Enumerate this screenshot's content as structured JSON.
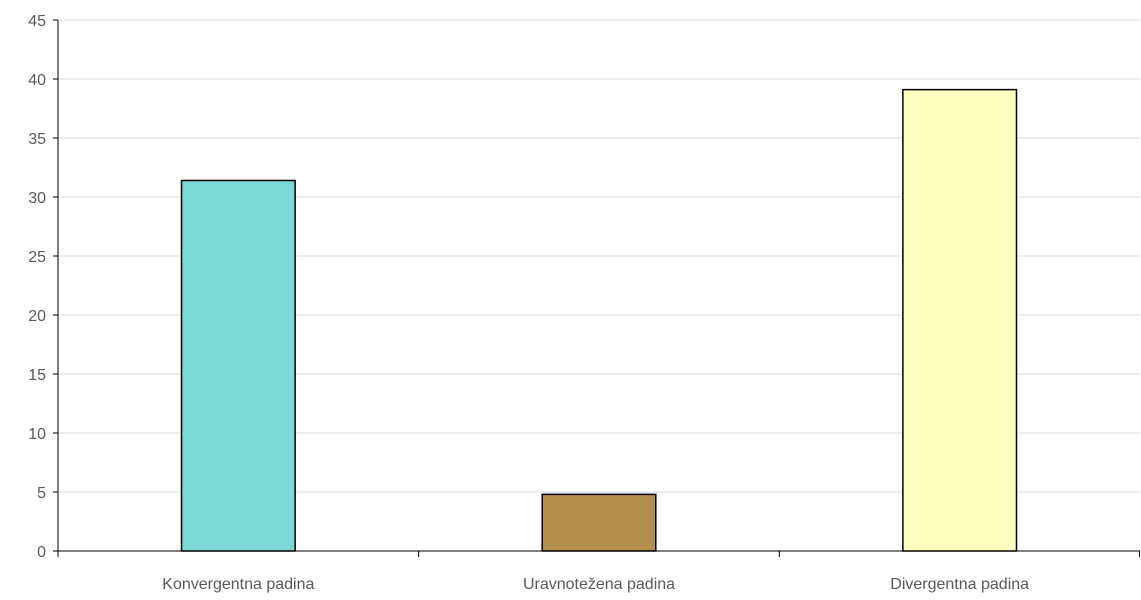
{
  "chart_data": {
    "type": "bar",
    "categories": [
      "Konvergentna padina",
      "Uravnotežena padina",
      "Divergentna padina"
    ],
    "values": [
      31.4,
      4.8,
      39.1
    ],
    "bar_colors": [
      "#7ad9d5",
      "#b38f4d",
      "#ffffbf"
    ],
    "bar_stroke": "#000000",
    "grid_color": "#d9d9d9",
    "axis_color": "#000000",
    "title": "",
    "xlabel": "",
    "ylabel": "",
    "ylim": [
      0,
      45
    ],
    "y_ticks": [
      "0",
      "5",
      "10",
      "15",
      "20",
      "25",
      "30",
      "35",
      "40",
      "45"
    ],
    "grid": true,
    "legend": "none"
  }
}
